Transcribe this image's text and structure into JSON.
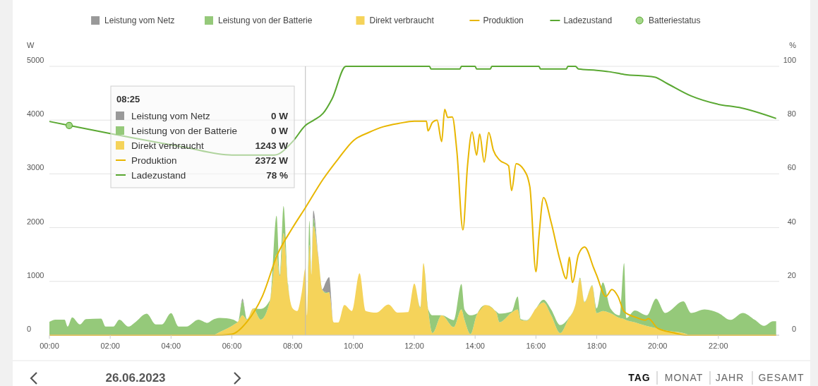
{
  "chart_data": {
    "type": "area",
    "stacked": true,
    "x": [
      0,
      0.2,
      0.5,
      0.6,
      0.75,
      1,
      1.2,
      1.7,
      1.85,
      2.1,
      2.3,
      2.6,
      2.8,
      3.2,
      3.5,
      3.7,
      4,
      4.25,
      4.5,
      4.9,
      5.2,
      5.35,
      5.6,
      6.05,
      6.2,
      6.35,
      6.5,
      6.7,
      6.95,
      7.25,
      7.47,
      7.58,
      7.7,
      7.85,
      8,
      8.15,
      8.3,
      8.42,
      8.47,
      8.55,
      8.62,
      8.68,
      8.84,
      8.97,
      9.1,
      9.2,
      9.35,
      9.5,
      9.7,
      9.95,
      10.2,
      10.4,
      10.75,
      11.15,
      11.45,
      11.8,
      12,
      12.2,
      12.3,
      12.45,
      12.6,
      12.9,
      13.3,
      13.55,
      13.65,
      13.85,
      14.05,
      14.35,
      14.7,
      14.8,
      15.2,
      15.4,
      15.5,
      15.7,
      16,
      16.25,
      16.5,
      16.8,
      17.05,
      17.3,
      17.45,
      17.6,
      17.85,
      18,
      18.2,
      18.45,
      18.75,
      18.9,
      18.98,
      19.25,
      19.65,
      19.95,
      20.25,
      20.85,
      21.1,
      21.55,
      22,
      22.4,
      22.8,
      23.2,
      23.5,
      23.8,
      23.9
    ],
    "series": [
      {
        "name": "Direkt verbraucht",
        "color": "#f5d35a",
        "values": [
          0,
          0,
          0,
          0,
          0,
          0,
          0,
          0,
          0,
          0,
          0,
          0,
          0,
          0,
          0,
          0,
          0,
          0,
          0,
          0,
          0,
          0,
          60,
          190,
          250,
          370,
          290,
          500,
          290,
          630,
          1500,
          1100,
          1900,
          900,
          500,
          450,
          800,
          1243,
          370,
          1680,
          1110,
          2030,
          1470,
          850,
          780,
          800,
          235,
          235,
          560,
          450,
          1150,
          450,
          420,
          570,
          420,
          430,
          960,
          500,
          1340,
          500,
          40,
          370,
          150,
          480,
          290,
          20,
          370,
          560,
          420,
          240,
          420,
          480,
          280,
          270,
          500,
          610,
          370,
          40,
          280,
          570,
          1050,
          610,
          920,
          410,
          450,
          410,
          320,
          300,
          280,
          240,
          170,
          130,
          90,
          40,
          0,
          0,
          0,
          0,
          0,
          0,
          0,
          0,
          0
        ]
      },
      {
        "name": "Leistung von der Batterie",
        "color": "#95c97a",
        "values": [
          250,
          290,
          290,
          160,
          330,
          200,
          300,
          310,
          160,
          160,
          290,
          160,
          230,
          400,
          200,
          200,
          410,
          160,
          160,
          290,
          230,
          280,
          260,
          100,
          0,
          270,
          10,
          0,
          200,
          20,
          720,
          20,
          500,
          50,
          0,
          0,
          0,
          0,
          0,
          450,
          0,
          150,
          0,
          0,
          20,
          0,
          0,
          0,
          0,
          0,
          0,
          0,
          0,
          0,
          0,
          0,
          0,
          20,
          0,
          0,
          330,
          0,
          130,
          470,
          190,
          350,
          30,
          0,
          20,
          160,
          20,
          240,
          20,
          10,
          0,
          50,
          110,
          150,
          20,
          0,
          20,
          10,
          10,
          90,
          530,
          90,
          50,
          1040,
          40,
          220,
          200,
          550,
          325,
          590,
          415,
          480,
          415,
          285,
          415,
          285,
          175,
          260,
          260
        ]
      },
      {
        "name": "Leistung vom Netz",
        "color": "#999999",
        "values": [
          0,
          0,
          0,
          0,
          0,
          0,
          0,
          0,
          0,
          0,
          0,
          0,
          0,
          0,
          0,
          0,
          0,
          0,
          0,
          0,
          0,
          0,
          0,
          0,
          0,
          40,
          0,
          0,
          0,
          0,
          0,
          0,
          0,
          0,
          0,
          0,
          0,
          0,
          0,
          0,
          0,
          140,
          30,
          0,
          200,
          280,
          0,
          0,
          0,
          0,
          0,
          0,
          0,
          0,
          0,
          0,
          0,
          0,
          0,
          0,
          0,
          0,
          0,
          0,
          0,
          0,
          0,
          0,
          0,
          0,
          0,
          0,
          0,
          0,
          0,
          0,
          0,
          0,
          0,
          0,
          0,
          0,
          0,
          0,
          0,
          0,
          0,
          0,
          0,
          0,
          0,
          0,
          0,
          0,
          0,
          0,
          0,
          0,
          0,
          0,
          0,
          0,
          0
        ]
      },
      {
        "name": "Produktion",
        "type": "line",
        "color": "#e8b600",
        "x": [
          0,
          5.4,
          6,
          6.5,
          7,
          7.5,
          8,
          8.42,
          9,
          9.5,
          10,
          10.5,
          11,
          11.5,
          12,
          12.4,
          12.45,
          12.6,
          12.75,
          12.9,
          13,
          13.1,
          13.25,
          13.4,
          13.6,
          13.75,
          13.9,
          14.05,
          14.15,
          14.3,
          14.45,
          14.6,
          14.8,
          15.1,
          15.2,
          15.35,
          15.6,
          15.8,
          16,
          16.1,
          16.25,
          16.5,
          16.8,
          17,
          17.1,
          17.2,
          17.4,
          17.6,
          17.9,
          18,
          18.3,
          18.5,
          18.7,
          18.9,
          19.3,
          19.6,
          19.7,
          20,
          20.5,
          20.9,
          23.9
        ],
        "values": [
          0,
          0,
          20,
          250,
          720,
          1500,
          2000,
          2372,
          2900,
          3280,
          3620,
          3770,
          3880,
          3940,
          3980,
          3980,
          3800,
          3960,
          4000,
          3600,
          4200,
          4050,
          4060,
          3420,
          1960,
          3150,
          3780,
          3350,
          3740,
          3220,
          3770,
          3440,
          3260,
          3150,
          2690,
          3190,
          3080,
          2760,
          1180,
          1840,
          2560,
          2100,
          1380,
          1050,
          1450,
          980,
          1500,
          1640,
          1250,
          1110,
          720,
          850,
          720,
          440,
          330,
          280,
          310,
          130,
          50,
          0,
          0
        ]
      },
      {
        "name": "Ladezustand",
        "type": "line",
        "axis": "y2",
        "color": "#5aa832",
        "x": [
          0,
          0.65,
          2,
          4.4,
          6,
          7.4,
          8,
          8.42,
          8.7,
          9,
          9.3,
          9.75,
          12.5,
          12.55,
          13.5,
          13.55,
          14,
          14.05,
          14.5,
          14.55,
          16.1,
          16.15,
          17,
          17.05,
          17.3,
          17.4,
          18,
          18.4,
          18.9,
          19.9,
          20.3,
          21.1,
          21.95,
          22.76,
          23.9
        ],
        "values": [
          79.5,
          78,
          75,
          70,
          67,
          67,
          72,
          78,
          80,
          82.5,
          88,
          100,
          100,
          99,
          99,
          100,
          100,
          99,
          99,
          100,
          100,
          99,
          99,
          100,
          100,
          99,
          98.5,
          98,
          97,
          96,
          93.7,
          89,
          86,
          84.5,
          80.6
        ]
      },
      {
        "name": "Batteriestatus",
        "type": "scatter",
        "axis": "y2",
        "marker": "circle",
        "color": "#a5d88a",
        "x": [
          0.65
        ],
        "values": [
          78
        ]
      }
    ],
    "xlim": [
      0,
      24
    ],
    "xticks": [
      {
        "value": 0,
        "label": "00:00"
      },
      {
        "value": 2,
        "label": "02:00"
      },
      {
        "value": 4,
        "label": "04:00"
      },
      {
        "value": 6,
        "label": "06:00"
      },
      {
        "value": 8,
        "label": "08:00"
      },
      {
        "value": 10,
        "label": "10:00"
      },
      {
        "value": 12,
        "label": "12:00"
      },
      {
        "value": 14,
        "label": "14:00"
      },
      {
        "value": 16,
        "label": "16:00"
      },
      {
        "value": 18,
        "label": "18:00"
      },
      {
        "value": 20,
        "label": "20:00"
      },
      {
        "value": 22,
        "label": "22:00"
      }
    ],
    "ylim": [
      0,
      5000
    ],
    "yticks": [
      0,
      1000,
      2000,
      3000,
      4000,
      5000
    ],
    "ylabel": "W",
    "y2lim": [
      0,
      100
    ],
    "y2ticks": [
      0,
      20,
      40,
      60,
      80,
      100
    ],
    "y2label": "%",
    "grid": "y",
    "legend": "top",
    "ref_lines": [
      {
        "axis": "x",
        "value": 8.42,
        "color": "#bbbbbb"
      }
    ],
    "annotations": [
      "08:25",
      "0 W",
      "0 W",
      "1243 W",
      "2372 W",
      "78 %",
      "26.06.2023",
      "TAG",
      "MONAT",
      "JAHR",
      "GESAMT"
    ]
  }
}
